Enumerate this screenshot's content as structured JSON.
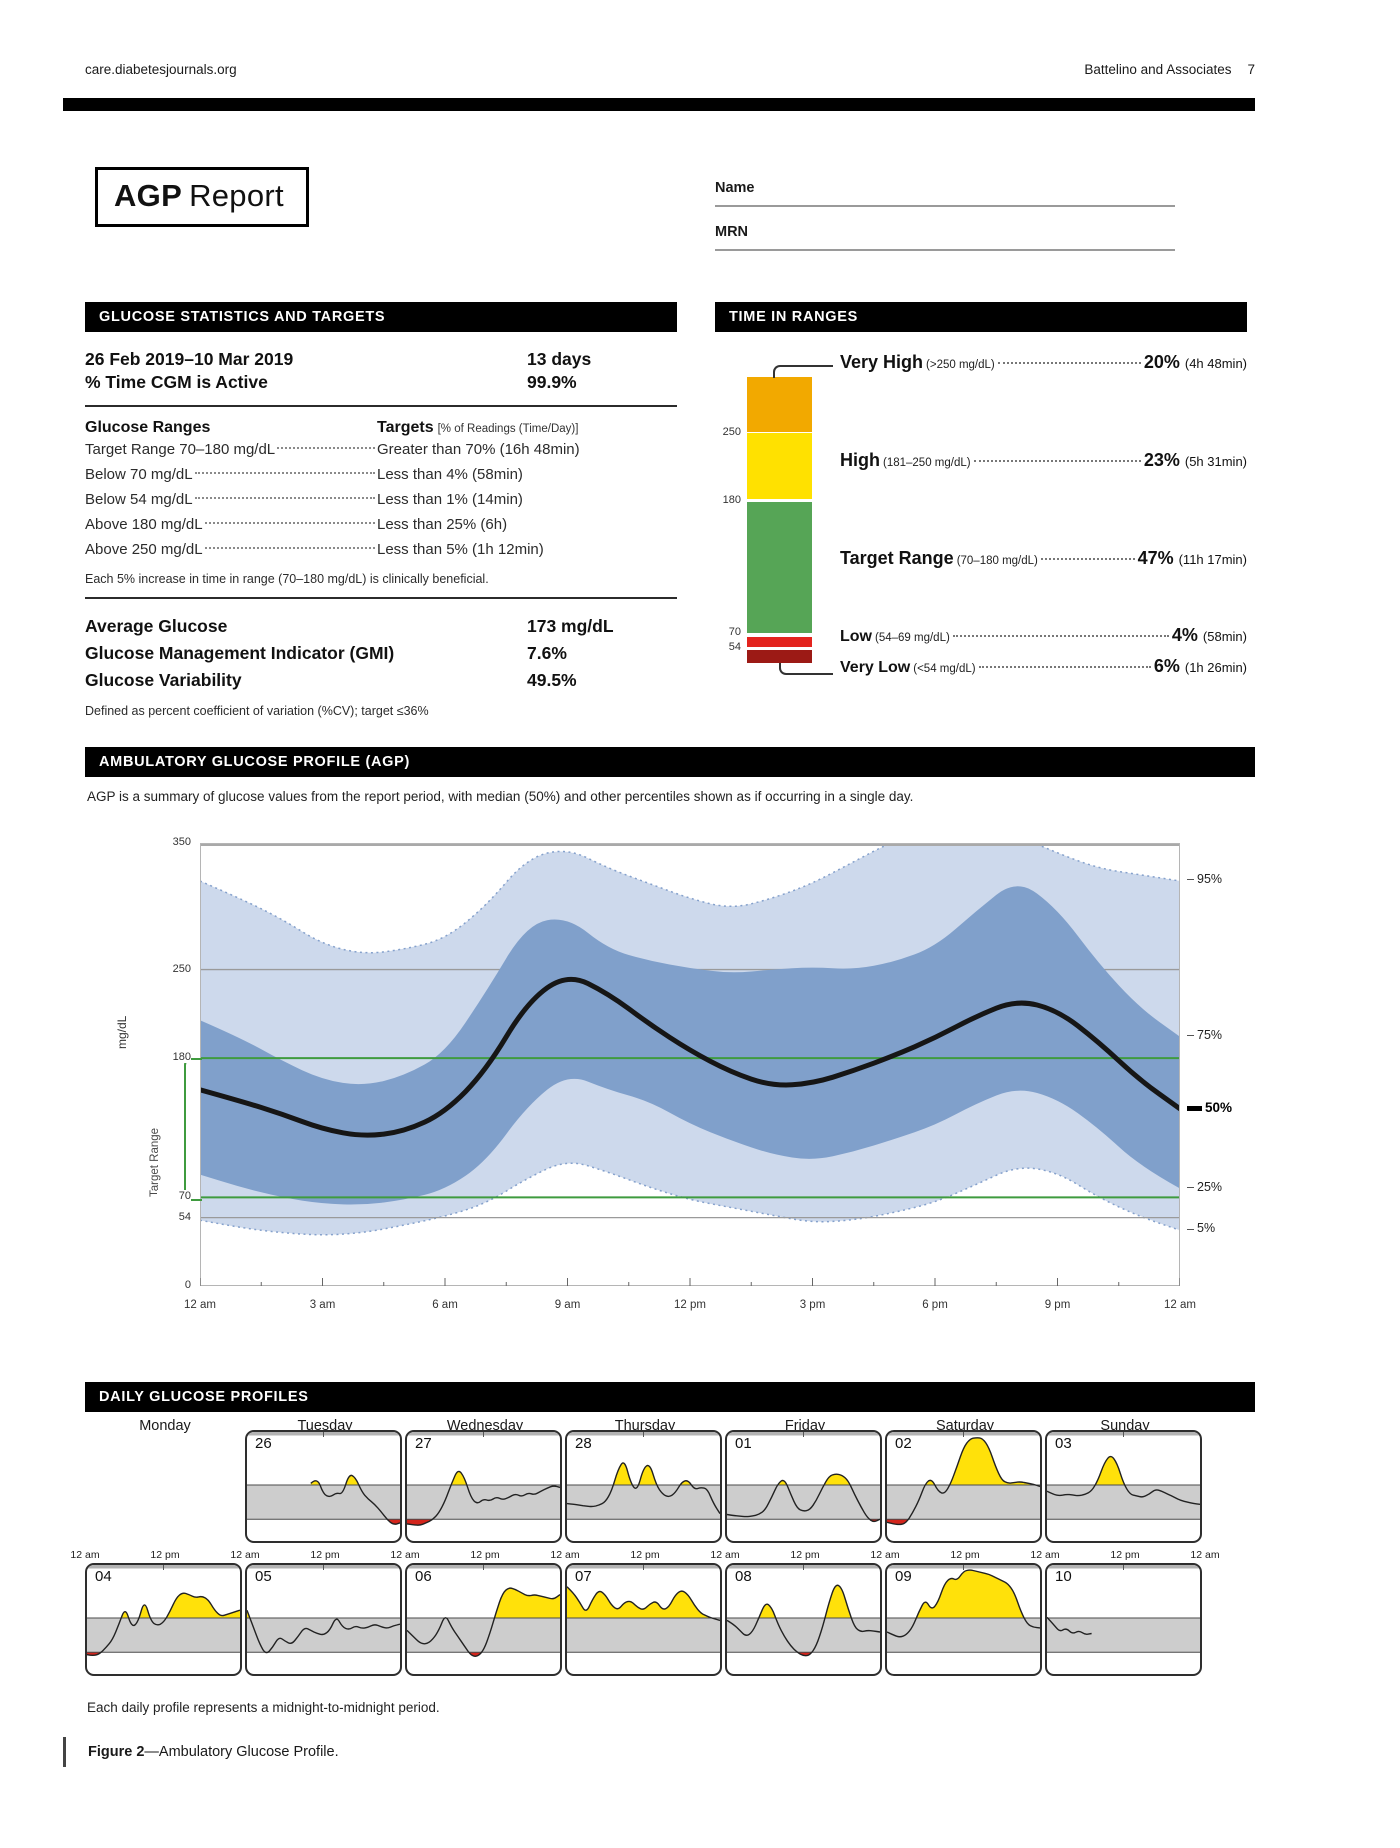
{
  "page": {
    "site": "care.diabetesjournals.org",
    "journal_ref": "Battelino and Associates",
    "page_number": "7",
    "title_bold": "AGP",
    "title_rest": "Report"
  },
  "patient": {
    "name_label": "Name",
    "mrn_label": "MRN"
  },
  "glucose_stats": {
    "header": "GLUCOSE STATISTICS AND TARGETS",
    "date_range": "26 Feb 2019–10 Mar 2019",
    "days": "13 days",
    "cgm_active_label": "% Time CGM is Active",
    "cgm_active_value": "99.9%",
    "ranges_header": "Glucose Ranges",
    "targets_header": "Targets",
    "targets_subtext": "[% of Readings (Time/Day)]",
    "rows": [
      {
        "range": "Target Range 70–180 mg/dL",
        "target": "Greater than 70% (16h 48min)"
      },
      {
        "range": "Below 70 mg/dL",
        "target": "Less than 4% (58min)"
      },
      {
        "range": "Below 54 mg/dL",
        "target": "Less than 1% (14min)"
      },
      {
        "range": "Above 180 mg/dL",
        "target": "Less than 25% (6h)"
      },
      {
        "range": "Above 250 mg/dL",
        "target": "Less than 5% (1h 12min)"
      }
    ],
    "note": "Each 5% increase in time in range (70–180 mg/dL) is clinically beneficial.",
    "metrics": [
      {
        "label": "Average Glucose",
        "value": "173 mg/dL"
      },
      {
        "label": "Glucose Management Indicator (GMI)",
        "value": "7.6%"
      },
      {
        "label": "Glucose Variability",
        "value": "49.5%"
      }
    ],
    "variability_note": "Defined as percent coefficient of variation (%CV); target ≤36%"
  },
  "time_in_ranges": {
    "header": "TIME IN RANGES",
    "axis_labels": [
      "250",
      "180",
      "70",
      "54"
    ],
    "segments": [
      {
        "name": "Very High",
        "range": "(>250 mg/dL)",
        "percent": "20%",
        "duration": "(4h 48min)",
        "color": "#f2a900"
      },
      {
        "name": "High",
        "range": "(181–250 mg/dL)",
        "percent": "23%",
        "duration": "(5h 31min)",
        "color": "#ffe100"
      },
      {
        "name": "Target Range",
        "range": "(70–180 mg/dL)",
        "percent": "47%",
        "duration": "(11h 17min)",
        "color": "#56a556"
      },
      {
        "name": "Low",
        "range": "(54–69 mg/dL)",
        "percent": "4%",
        "duration": "(58min)",
        "color": "#e3241e"
      },
      {
        "name": "Very Low",
        "range": "(<54 mg/dL)",
        "percent": "6%",
        "duration": "(1h 26min)",
        "color": "#9c1a15"
      }
    ]
  },
  "agp": {
    "header": "AMBULATORY GLUCOSE PROFILE (AGP)",
    "description": "AGP is a summary of glucose values from the report period, with median (50%) and other percentiles shown as if occurring in a single day.",
    "y_axis_label": "mg/dL",
    "target_range_label": "Target Range",
    "y_tick_labels": [
      "350",
      "250",
      "180",
      "70",
      "54",
      "0"
    ]
  },
  "daily": {
    "header": "DAILY GLUCOSE PROFILES",
    "note": "Each daily profile represents a midnight-to-midnight period."
  },
  "caption": {
    "bold": "Figure 2",
    "rest": "—Ambulatory Glucose Profile."
  },
  "chart_data": [
    {
      "type": "area",
      "title": "Ambulatory Glucose Profile percentile bands (mg/dL vs time of day)",
      "ylabel": "mg/dL",
      "ylim": [
        0,
        350
      ],
      "y_ticks": [
        0,
        54,
        70,
        180,
        250,
        350
      ],
      "target_band": [
        70,
        180
      ],
      "ref_lines": [
        54,
        250
      ],
      "x_hours": [
        0,
        1,
        2,
        3,
        4,
        5,
        6,
        7,
        8,
        9,
        10,
        11,
        12,
        13,
        14,
        15,
        16,
        17,
        18,
        19,
        20,
        21,
        22,
        23,
        24
      ],
      "x_tick_labels": [
        "12 am",
        "3 am",
        "6 am",
        "9 am",
        "12 pm",
        "3 pm",
        "6 pm",
        "9 pm",
        "12 am"
      ],
      "series": [
        {
          "name": "p5",
          "values": [
            52,
            46,
            42,
            40,
            42,
            48,
            55,
            65,
            85,
            100,
            90,
            78,
            68,
            62,
            56,
            50,
            52,
            58,
            66,
            80,
            95,
            90,
            70,
            55,
            44
          ]
        },
        {
          "name": "p25",
          "values": [
            88,
            78,
            70,
            65,
            64,
            68,
            76,
            98,
            142,
            168,
            155,
            146,
            128,
            115,
            104,
            99,
            106,
            116,
            127,
            144,
            157,
            148,
            125,
            95,
            77
          ]
        },
        {
          "name": "p50",
          "values": [
            155,
            146,
            136,
            124,
            118,
            122,
            137,
            170,
            224,
            247,
            231,
            207,
            186,
            169,
            158,
            160,
            170,
            182,
            196,
            213,
            226,
            218,
            193,
            163,
            140
          ]
        },
        {
          "name": "p75",
          "values": [
            210,
            196,
            178,
            163,
            158,
            166,
            184,
            232,
            286,
            292,
            266,
            257,
            251,
            247,
            250,
            252,
            250,
            256,
            268,
            296,
            322,
            298,
            255,
            220,
            197
          ]
        },
        {
          "name": "p95",
          "values": [
            320,
            306,
            290,
            270,
            262,
            266,
            274,
            300,
            338,
            346,
            330,
            318,
            306,
            298,
            306,
            318,
            335,
            352,
            360,
            362,
            356,
            342,
            330,
            325,
            320
          ]
        }
      ],
      "right_labels": [
        {
          "label": "95%",
          "value": 320
        },
        {
          "label": "75%",
          "value": 197
        },
        {
          "label": "50%",
          "value": 140,
          "bold": true
        },
        {
          "label": "25%",
          "value": 77
        },
        {
          "label": "5%",
          "value": 44
        }
      ],
      "colors": {
        "band_outer": "#cdd9ec",
        "band_inner": "#80a0cb",
        "band_edge": "#85a1cc",
        "median": "#161616",
        "target_line": "#3f9b3f",
        "ref_line": "#9a9a9a"
      }
    },
    {
      "type": "line",
      "title": "Daily glucose profiles (mg/dL vs time of day, midnight to midnight)",
      "ylim": [
        0,
        350
      ],
      "band": [
        70,
        180
      ],
      "day_names": [
        "Monday",
        "Tuesday",
        "Wednesday",
        "Thursday",
        "Friday",
        "Saturday",
        "Sunday"
      ],
      "x_axis_labels": [
        "12 am",
        "12 pm",
        "12 am",
        "12 pm",
        "12 am",
        "12 pm",
        "12 am",
        "12 pm",
        "12 am",
        "12 pm",
        "12 am",
        "12 pm",
        "12 am",
        "12 pm",
        "12 am"
      ],
      "colors": {
        "above": "#ffe10a",
        "below": "#d3251c",
        "band": "#cdcdcd",
        "line": "#222222"
      },
      "rows": [
        {
          "start_col": 1,
          "cells": [
            {
              "day": "26",
              "values": [
                null,
                null,
                null,
                null,
                null,
                null,
                null,
                null,
                null,
                null,
                185,
                205,
                150,
                140,
                155,
                150,
                215,
                205,
                158,
                135,
                118,
                95,
                68,
                52,
                58
              ]
            },
            {
              "day": "27",
              "values": [
                55,
                52,
                50,
                58,
                68,
                90,
                130,
                185,
                232,
                205,
                140,
                118,
                135,
                128,
                142,
                132,
                140,
                152,
                142,
                155,
                148,
                160,
                170,
                178,
                172
              ]
            },
            {
              "day": "28",
              "values": [
                120,
                118,
                115,
                112,
                110,
                115,
                125,
                160,
                230,
                262,
                185,
                160,
                235,
                248,
                180,
                150,
                140,
                155,
                190,
                196,
                165,
                172,
                168,
                120,
                88
              ]
            },
            {
              "day": "01",
              "values": [
                85,
                82,
                80,
                78,
                80,
                85,
                100,
                140,
                185,
                200,
                150,
                105,
                95,
                100,
                130,
                172,
                208,
                216,
                212,
                195,
                150,
                110,
                75,
                60,
                70
              ]
            },
            {
              "day": "02",
              "values": [
                60,
                55,
                52,
                58,
                90,
                130,
                185,
                200,
                160,
                150,
                185,
                240,
                300,
                328,
                332,
                330,
                300,
                240,
                195,
                185,
                188,
                190,
                186,
                182,
                175
              ]
            },
            {
              "day": "03",
              "values": [
                160,
                150,
                145,
                150,
                148,
                145,
                150,
                160,
                195,
                252,
                278,
                250,
                185,
                150,
                145,
                140,
                150,
                166,
                160,
                150,
                140,
                130,
                125,
                120,
                118
              ]
            }
          ]
        },
        {
          "start_col": 0,
          "cells": [
            {
              "day": "04",
              "values": [
                62,
                58,
                65,
                85,
                110,
                160,
                215,
                150,
                165,
                240,
                170,
                155,
                165,
                200,
                245,
                262,
                255,
                245,
                250,
                240,
                205,
                185,
                192,
                198,
                205
              ]
            },
            {
              "day": "05",
              "values": [
                205,
                150,
                95,
                62,
                85,
                120,
                105,
                95,
                120,
                150,
                140,
                130,
                125,
                140,
                186,
                150,
                142,
                155,
                146,
                150,
                160,
                152,
                146,
                155,
                160
              ]
            },
            {
              "day": "06",
              "values": [
                140,
                120,
                100,
                95,
                110,
                140,
                192,
                150,
                120,
                90,
                60,
                55,
                75,
                130,
                200,
                260,
                278,
                272,
                260,
                250,
                255,
                250,
                245,
                240,
                255
              ]
            },
            {
              "day": "07",
              "values": [
                280,
                260,
                230,
                195,
                240,
                270,
                255,
                220,
                205,
                230,
                235,
                215,
                205,
                225,
                235,
                205,
                215,
                255,
                270,
                255,
                220,
                195,
                185,
                178,
                172
              ]
            },
            {
              "day": "08",
              "values": [
                172,
                160,
                140,
                120,
                135,
                180,
                230,
                215,
                160,
                120,
                90,
                70,
                58,
                60,
                90,
                150,
                230,
                290,
                278,
                210,
                150,
                135,
                140,
                138,
                135
              ]
            },
            {
              "day": "09",
              "values": [
                135,
                125,
                118,
                125,
                150,
                200,
                240,
                205,
                230,
                290,
                310,
                300,
                330,
                335,
                330,
                325,
                320,
                310,
                300,
                290,
                260,
                200,
                160,
                150,
                148
              ]
            },
            {
              "day": "10",
              "values": [
                182,
                160,
                135,
                148,
                128,
                140,
                126,
                130,
                null,
                null,
                null,
                null,
                null,
                null,
                null,
                null,
                null,
                null,
                null,
                null,
                null,
                null,
                null,
                null,
                null
              ]
            }
          ]
        }
      ]
    }
  ]
}
